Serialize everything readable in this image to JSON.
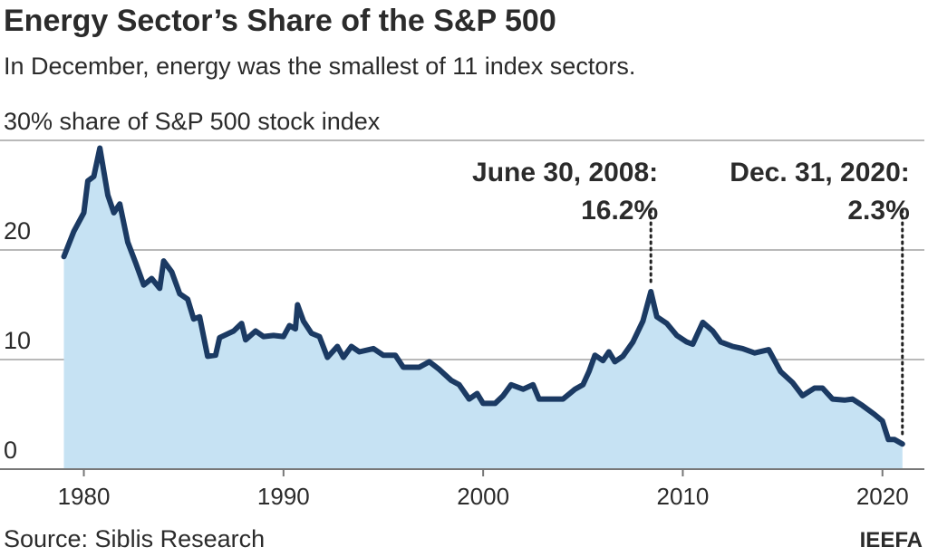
{
  "chart_data": {
    "type": "area",
    "title": "Energy Sector’s Share of the S&P 500",
    "subtitle": "In December, energy was the smallest of 11 index sectors.",
    "source": "Source: Siblis Research",
    "credit": "IEEFA",
    "x": [
      1979.0,
      1979.5,
      1980.0,
      1980.2,
      1980.5,
      1980.8,
      1981.2,
      1981.5,
      1981.8,
      1982.2,
      1982.6,
      1983.0,
      1983.4,
      1983.8,
      1984.0,
      1984.4,
      1984.8,
      1985.2,
      1985.5,
      1985.8,
      1986.2,
      1986.6,
      1986.8,
      1987.5,
      1987.9,
      1988.1,
      1988.6,
      1989.0,
      1989.5,
      1990.0,
      1990.3,
      1990.6,
      1990.7,
      1991.0,
      1991.4,
      1991.8,
      1992.2,
      1992.7,
      1993.0,
      1993.4,
      1993.8,
      1994.5,
      1995.0,
      1995.6,
      1996.0,
      1996.8,
      1997.3,
      1997.8,
      1998.4,
      1998.8,
      1999.3,
      1999.7,
      2000.0,
      2000.6,
      2001.0,
      2001.4,
      2002.0,
      2002.5,
      2002.8,
      2003.5,
      2004.0,
      2004.6,
      2005.0,
      2005.3,
      2005.6,
      2006.0,
      2006.3,
      2006.6,
      2007.0,
      2007.5,
      2008.0,
      2008.4,
      2008.7,
      2009.2,
      2009.7,
      2010.2,
      2010.5,
      2011.0,
      2011.5,
      2011.9,
      2012.5,
      2013.0,
      2013.6,
      2014.3,
      2014.9,
      2015.5,
      2016.0,
      2016.6,
      2017.0,
      2017.5,
      2018.1,
      2018.5,
      2019.0,
      2019.6,
      2020.0,
      2020.3,
      2020.6,
      2021.0
    ],
    "series": [
      {
        "color": "#1b3a63",
        "fill": "#c6e2f3",
        "values": [
          19.4,
          21.7,
          23.4,
          26.3,
          26.7,
          29.3,
          25.0,
          23.4,
          24.2,
          20.7,
          18.8,
          16.8,
          17.4,
          16.5,
          19.0,
          18.0,
          16.0,
          15.5,
          13.7,
          13.9,
          10.3,
          10.4,
          12.0,
          12.6,
          13.3,
          11.8,
          12.6,
          12.1,
          12.2,
          12.1,
          13.1,
          12.8,
          15.0,
          13.5,
          12.4,
          12.1,
          10.2,
          11.2,
          10.2,
          11.2,
          10.7,
          11.0,
          10.4,
          10.4,
          9.3,
          9.3,
          9.8,
          9.1,
          8.1,
          7.7,
          6.4,
          6.9,
          6.0,
          6.0,
          6.7,
          7.7,
          7.3,
          7.7,
          6.4,
          6.4,
          6.4,
          7.3,
          7.7,
          8.9,
          10.4,
          9.9,
          10.7,
          9.8,
          10.3,
          11.6,
          13.5,
          16.2,
          13.9,
          13.3,
          12.2,
          11.6,
          11.4,
          13.4,
          12.6,
          11.6,
          11.2,
          11.0,
          10.6,
          10.9,
          8.9,
          7.9,
          6.7,
          7.4,
          7.4,
          6.4,
          6.3,
          6.4,
          5.8,
          5.0,
          4.4,
          2.7,
          2.7,
          2.3
        ]
      }
    ],
    "xlim": [
      1975.8,
      2022.1
    ],
    "xticks": [
      1980,
      1990,
      2000,
      2010,
      2020
    ],
    "ylim": [
      0,
      30
    ],
    "yticks": [
      0,
      10,
      20,
      {
        "value": 30,
        "label": "30% share of S&P 500 stock index"
      }
    ],
    "grid": true,
    "annotations": [
      {
        "lines": [
          "June 30, 2008:",
          "16.2%"
        ],
        "x": 2008.4,
        "y": 16.2
      },
      {
        "lines": [
          "Dec. 31, 2020:",
          "2.3%"
        ],
        "x": 2021.0,
        "y": 2.3
      }
    ]
  }
}
